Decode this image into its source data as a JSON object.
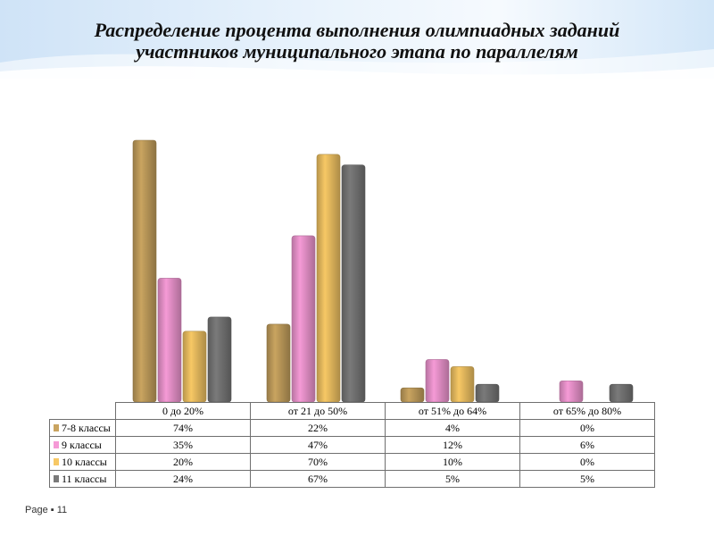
{
  "slide": {
    "title_line1": "Распределение процента выполнения олимпиадных заданий",
    "title_line2": "участников муниципального этапа по параллелям",
    "footer_label": "Page",
    "footer_separator": "▪",
    "page_number": "11"
  },
  "chart_data": {
    "type": "bar",
    "categories": [
      "0 до 20%",
      "от 21 до 50%",
      "от 51% до 64%",
      "от 65% до 80%"
    ],
    "series": [
      {
        "name": "7-8 классы",
        "color": "#c9a460",
        "values": [
          74,
          22,
          4,
          0
        ],
        "labels": [
          "74%",
          "22%",
          "4%",
          "0%"
        ]
      },
      {
        "name": "9 классы",
        "color": "#f59ad6",
        "values": [
          35,
          47,
          12,
          6
        ],
        "labels": [
          "35%",
          "47%",
          "12%",
          "6%"
        ]
      },
      {
        "name": "10 классы",
        "color": "#f7c865",
        "values": [
          20,
          70,
          10,
          0
        ],
        "labels": [
          "20%",
          "70%",
          "10%",
          "0%"
        ]
      },
      {
        "name": "11 классы",
        "color": "#7a7a7a",
        "values": [
          24,
          67,
          5,
          5
        ],
        "labels": [
          "24%",
          "67%",
          "5%",
          "5%"
        ]
      }
    ],
    "ylim": [
      0,
      80
    ],
    "grid": false,
    "legend": "data-table",
    "title": "",
    "xlabel": "",
    "ylabel": ""
  }
}
